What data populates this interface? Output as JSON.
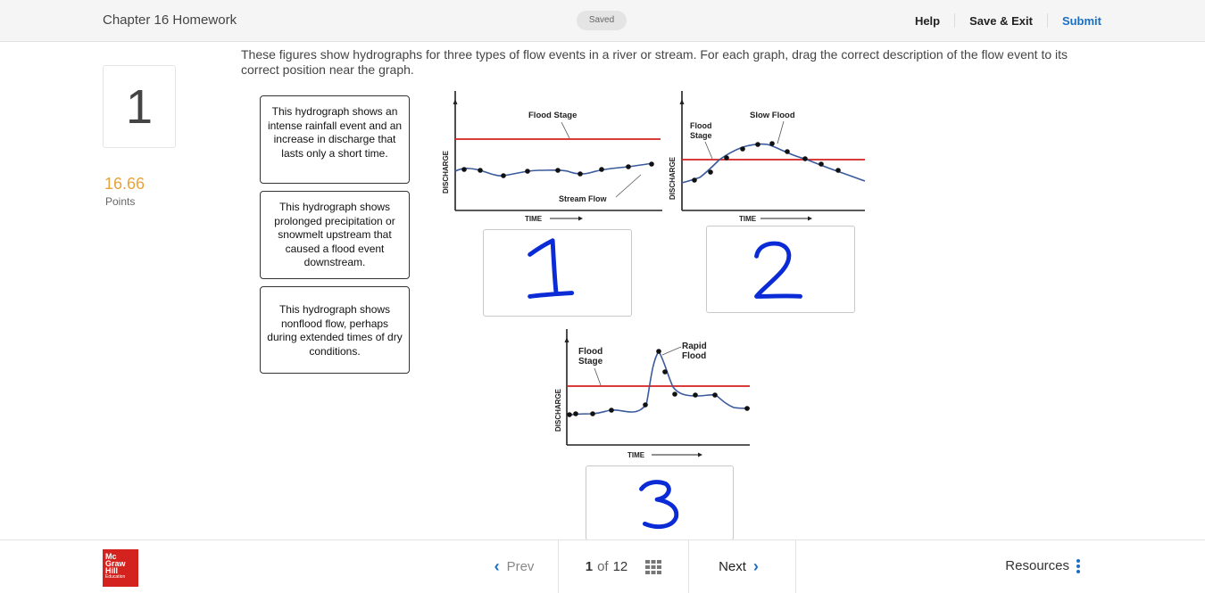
{
  "header": {
    "title": "Chapter 16 Homework",
    "status": "Saved",
    "help": "Help",
    "save_exit": "Save & Exit",
    "submit": "Submit"
  },
  "question": {
    "number": "1",
    "points": "16.66",
    "points_label": "Points",
    "prompt": "These figures show hydrographs for three types of flow events in a river or stream. For each graph, drag the correct description of the flow event to its correct position near the graph."
  },
  "descriptions": [
    "This hydrograph shows an intense rainfall event and an increase in discharge that lasts only a short time.",
    "This hydrograph shows prolonged precipitation or snowmelt upstream that caused a flood event downstream.",
    "This hydrograph shows nonflood flow, perhaps during extended times of dry conditions."
  ],
  "graphs": {
    "g1": {
      "flood_label": "Flood Stage",
      "flow_label": "Stream Flow",
      "ylabel": "DISCHARGE",
      "xlabel": "TIME"
    },
    "g2": {
      "flood_label_1": "Flood",
      "flood_label_2": "Stage",
      "event_label": "Slow Flood",
      "ylabel": "DISCHARGE",
      "xlabel": "TIME"
    },
    "g3": {
      "flood_label_1": "Flood",
      "flood_label_2": "Stage",
      "event_label_1": "Rapid",
      "event_label_2": "Flood",
      "ylabel": "DISCHARGE",
      "xlabel": "TIME"
    }
  },
  "answers": {
    "a1": "1",
    "a2": "2",
    "a3": "3"
  },
  "footer": {
    "logo_line1": "Mc",
    "logo_line2": "Graw",
    "logo_line3": "Hill",
    "logo_line4": "Education",
    "prev": "Prev",
    "current_page": "1",
    "of": "of",
    "total_pages": "12",
    "next": "Next",
    "resources": "Resources"
  },
  "colors": {
    "flood_line": "#d42020",
    "flow_curve": "#3a5a9c",
    "handwriting": "#0a2bd6",
    "points": "#e8a33b",
    "accent": "#1a6fc4"
  }
}
